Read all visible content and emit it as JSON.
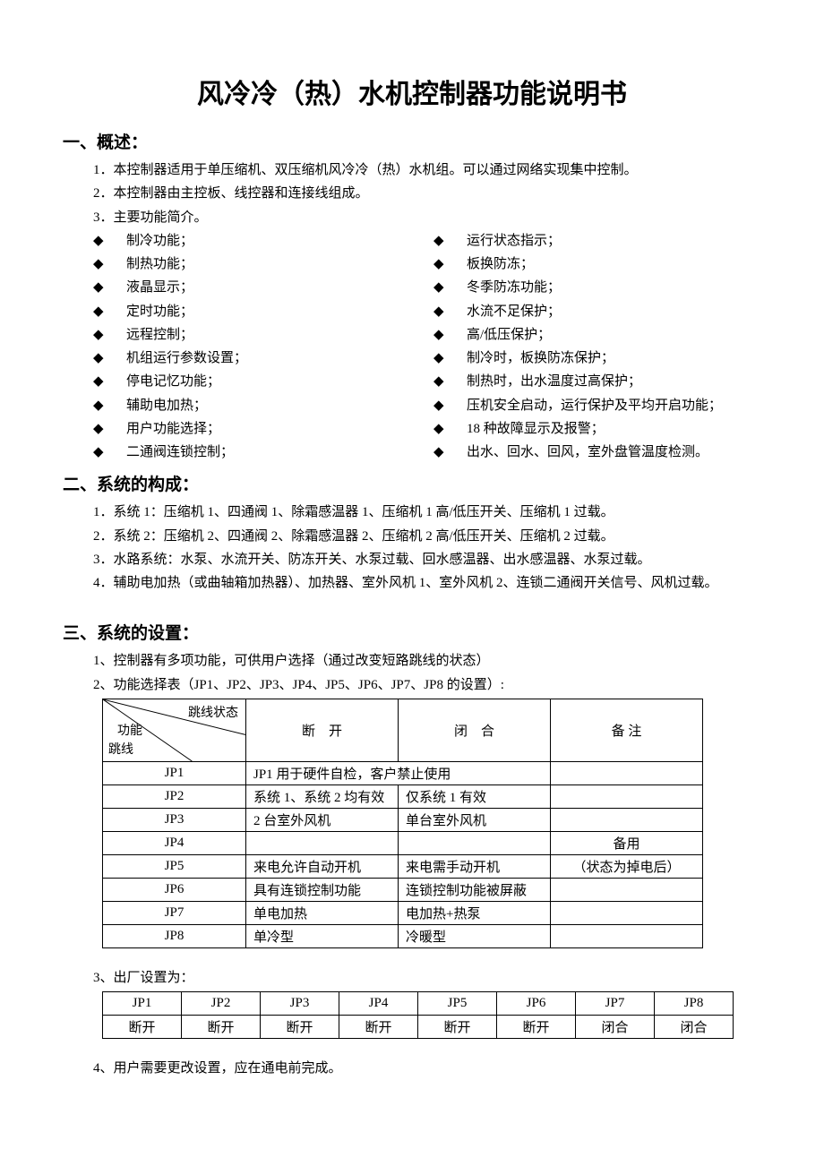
{
  "title": "风冷冷（热）水机控制器功能说明书",
  "s1": {
    "head": "一、概述：",
    "p1": "1．本控制器适用于单压缩机、双压缩机风冷冷（热）水机组。可以通过网络实现集中控制。",
    "p2": "2．本控制器由主控板、线控器和连接线组成。",
    "p3": "3．主要功能简介。",
    "left": [
      "制冷功能；",
      "制热功能；",
      "液晶显示；",
      "定时功能；",
      "远程控制；",
      "机组运行参数设置；",
      "停电记忆功能；",
      "辅助电加热；",
      "用户功能选择；",
      "二通阀连锁控制；"
    ],
    "right": [
      "运行状态指示；",
      "板换防冻；",
      "冬季防冻功能；",
      "水流不足保护；",
      "高/低压保护；",
      "制冷时，板换防冻保护；",
      "制热时，出水温度过高保护；",
      "压机安全启动，运行保护及平均开启功能；",
      "18 种故障显示及报警；",
      "出水、回水、回风，室外盘管温度检测。"
    ]
  },
  "s2": {
    "head": "二、系统的构成：",
    "items": [
      "1．系统 1：压缩机 1、四通阀 1、除霜感温器 1、压缩机 1 高/低压开关、压缩机 1 过载。",
      "2．系统 2：压缩机 2、四通阀 2、除霜感温器 2、压缩机 2 高/低压开关、压缩机 2 过载。",
      "3．水路系统：水泵、水流开关、防冻开关、水泵过载、回水感温器、出水感温器、水泵过载。",
      "4．辅助电加热（或曲轴箱加热器）、加热器、室外风机 1、室外风机 2、连锁二通阀开关信号、风机过载。"
    ]
  },
  "s3": {
    "head": "三、系统的设置：",
    "p1": "1、控制器有多项功能，可供用户选择（通过改变短路跳线的状态）",
    "p2": "2、功能选择表（JP1、JP2、JP3、JP4、JP5、JP6、JP7、JP8 的设置）:",
    "p3": "3、出厂设置为：",
    "p4": "4、用户需要更改设置，应在通电前完成。",
    "funcTable": {
      "hdr": {
        "diag_tr": "跳线状态",
        "diag_ml": "功能",
        "diag_bl": "跳线",
        "c2": "断　开",
        "c3": "闭　合",
        "c4": "备 注"
      },
      "rows": [
        {
          "jp": "JP1",
          "span": "JP1 用于硬件自检，客户禁止使用",
          "note": ""
        },
        {
          "jp": "JP2",
          "open": "系统 1、系统 2 均有效",
          "close": "仅系统 1 有效",
          "note": ""
        },
        {
          "jp": "JP3",
          "open": "2 台室外风机",
          "close": "单台室外风机",
          "note": ""
        },
        {
          "jp": "JP4",
          "open": "",
          "close": "",
          "note": "备用"
        },
        {
          "jp": "JP5",
          "open": "来电允许自动开机",
          "close": "来电需手动开机",
          "note": "（状态为掉电后）"
        },
        {
          "jp": "JP6",
          "open": "具有连锁控制功能",
          "close": "连锁控制功能被屏蔽",
          "note": ""
        },
        {
          "jp": "JP7",
          "open": "单电加热",
          "close": "电加热+热泵",
          "note": ""
        },
        {
          "jp": "JP8",
          "open": "单冷型",
          "close": "冷暖型",
          "note": ""
        }
      ]
    },
    "factoryTable": {
      "head": [
        "JP1",
        "JP2",
        "JP3",
        "JP4",
        "JP5",
        "JP6",
        "JP7",
        "JP8"
      ],
      "vals": [
        "断开",
        "断开",
        "断开",
        "断开",
        "断开",
        "断开",
        "闭合",
        "闭合"
      ]
    }
  }
}
